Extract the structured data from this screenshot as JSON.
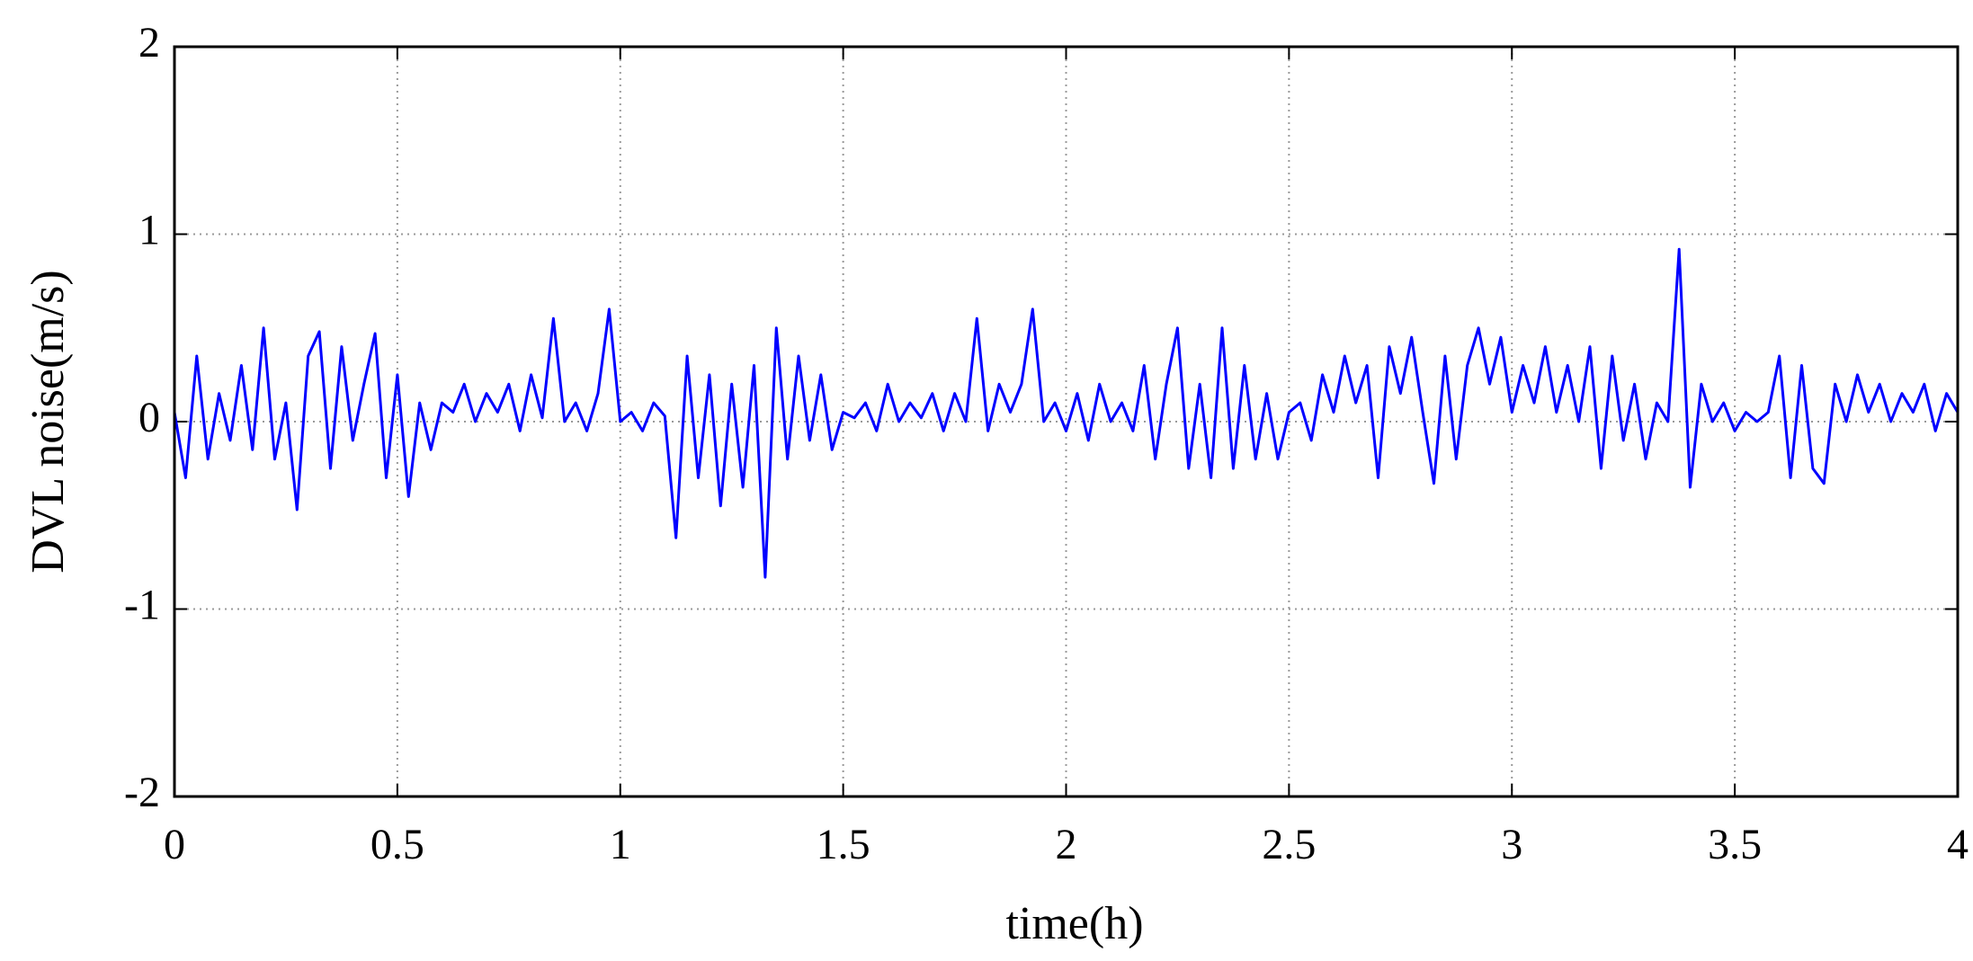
{
  "chart_data": {
    "type": "line",
    "xlabel": "time(h)",
    "ylabel": "DVL noise(m/s)",
    "x": [
      0,
      0.025,
      0.05,
      0.075,
      0.1,
      0.125,
      0.15,
      0.175,
      0.2,
      0.225,
      0.25,
      0.275,
      0.3,
      0.325,
      0.35,
      0.375,
      0.4,
      0.425,
      0.45,
      0.475,
      0.5,
      0.525,
      0.55,
      0.575,
      0.6,
      0.625,
      0.65,
      0.675,
      0.7,
      0.725,
      0.75,
      0.775,
      0.8,
      0.825,
      0.85,
      0.875,
      0.9,
      0.925,
      0.95,
      0.975,
      1,
      1.025,
      1.05,
      1.075,
      1.1,
      1.125,
      1.15,
      1.175,
      1.2,
      1.225,
      1.25,
      1.275,
      1.3,
      1.325,
      1.35,
      1.375,
      1.4,
      1.425,
      1.45,
      1.475,
      1.5,
      1.525,
      1.55,
      1.575,
      1.6,
      1.625,
      1.65,
      1.675,
      1.7,
      1.725,
      1.75,
      1.775,
      1.8,
      1.825,
      1.85,
      1.875,
      1.9,
      1.925,
      1.95,
      1.975,
      2,
      2.025,
      2.05,
      2.075,
      2.1,
      2.125,
      2.15,
      2.175,
      2.2,
      2.225,
      2.25,
      2.275,
      2.3,
      2.325,
      2.35,
      2.375,
      2.4,
      2.425,
      2.45,
      2.475,
      2.5,
      2.525,
      2.55,
      2.575,
      2.6,
      2.625,
      2.65,
      2.675,
      2.7,
      2.725,
      2.75,
      2.775,
      2.8,
      2.825,
      2.85,
      2.875,
      2.9,
      2.925,
      2.95,
      2.975,
      3,
      3.025,
      3.05,
      3.075,
      3.1,
      3.125,
      3.15,
      3.175,
      3.2,
      3.225,
      3.25,
      3.275,
      3.3,
      3.325,
      3.35,
      3.375,
      3.4,
      3.425,
      3.45,
      3.475,
      3.5,
      3.525,
      3.55,
      3.575,
      3.6,
      3.625,
      3.65,
      3.675,
      3.7,
      3.725,
      3.75,
      3.775,
      3.8,
      3.825,
      3.85,
      3.875,
      3.9,
      3.925,
      3.95,
      3.975,
      4
    ],
    "series": [
      {
        "color": "#0000ff",
        "values": [
          0.05,
          -0.3,
          0.35,
          -0.2,
          0.15,
          -0.1,
          0.3,
          -0.15,
          0.5,
          -0.2,
          0.1,
          -0.47,
          0.35,
          0.48,
          -0.25,
          0.4,
          -0.1,
          0.2,
          0.47,
          -0.3,
          0.25,
          -0.4,
          0.1,
          -0.15,
          0.1,
          0.05,
          0.2,
          0,
          0.15,
          0.05,
          0.2,
          -0.05,
          0.25,
          0.02,
          0.55,
          0,
          0.1,
          -0.05,
          0.15,
          0.6,
          0,
          0.05,
          -0.05,
          0.1,
          0.03,
          -0.62,
          0.35,
          -0.3,
          0.25,
          -0.45,
          0.2,
          -0.35,
          0.3,
          -0.83,
          0.5,
          -0.2,
          0.35,
          -0.1,
          0.25,
          -0.15,
          0.05,
          0.02,
          0.1,
          -0.05,
          0.2,
          0,
          0.1,
          0.02,
          0.15,
          -0.05,
          0.15,
          0,
          0.55,
          -0.05,
          0.2,
          0.05,
          0.2,
          0.6,
          0,
          0.1,
          -0.05,
          0.15,
          -0.1,
          0.2,
          0,
          0.1,
          -0.05,
          0.3,
          -0.2,
          0.2,
          0.5,
          -0.25,
          0.2,
          -0.3,
          0.5,
          -0.25,
          0.3,
          -0.2,
          0.15,
          -0.2,
          0.05,
          0.1,
          -0.1,
          0.25,
          0.05,
          0.35,
          0.1,
          0.3,
          -0.3,
          0.4,
          0.15,
          0.45,
          0.05,
          -0.33,
          0.35,
          -0.2,
          0.3,
          0.5,
          0.2,
          0.45,
          0.05,
          0.3,
          0.1,
          0.4,
          0.05,
          0.3,
          0,
          0.4,
          -0.25,
          0.35,
          -0.1,
          0.2,
          -0.2,
          0.1,
          0,
          0.92,
          -0.35,
          0.2,
          0,
          0.1,
          -0.05,
          0.05,
          0,
          0.05,
          0.35,
          -0.3,
          0.3,
          -0.25,
          -0.33,
          0.2,
          0,
          0.25,
          0.05,
          0.2,
          0,
          0.15,
          0.05,
          0.2,
          -0.05,
          0.15,
          0.05
        ]
      }
    ],
    "xlim": [
      0,
      4
    ],
    "xticks": [
      0,
      0.5,
      1,
      1.5,
      2,
      2.5,
      3,
      3.5,
      4
    ],
    "ylim": [
      -2,
      2
    ],
    "yticks": [
      -2,
      -1,
      0,
      1,
      2
    ],
    "grid": true
  }
}
